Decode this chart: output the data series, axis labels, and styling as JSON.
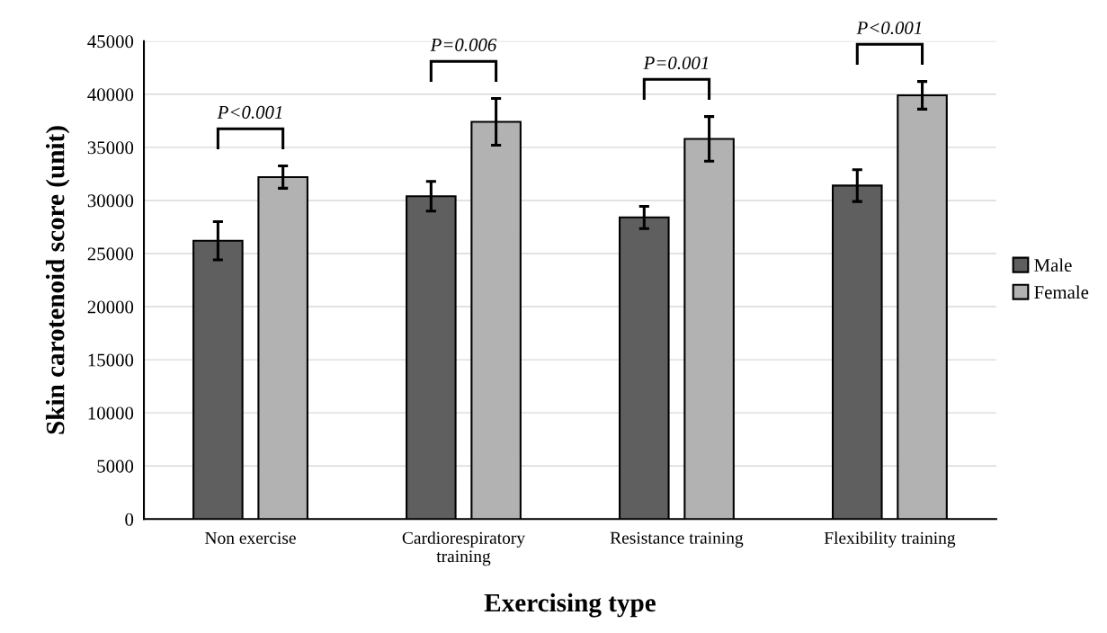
{
  "chart_data": {
    "type": "bar",
    "xlabel": "Exercising type",
    "ylabel": "Skin carotenoid score (unit)",
    "categories": [
      "Non exercise",
      "Cardiorespiratory\ntraining",
      "Resistance training",
      "Flexibility training"
    ],
    "series": [
      {
        "name": "Male",
        "color": "#5f5f5f",
        "values": [
          26200,
          30400,
          28400,
          31400
        ],
        "errors": [
          1800,
          1400,
          1050,
          1500
        ]
      },
      {
        "name": "Female",
        "color": "#b2b2b2",
        "values": [
          32200,
          37400,
          35800,
          39900
        ],
        "errors": [
          1050,
          2200,
          2100,
          1300
        ]
      }
    ],
    "ylim": [
      0,
      45000
    ],
    "yticks": [
      0,
      5000,
      10000,
      15000,
      20000,
      25000,
      30000,
      35000,
      40000,
      45000
    ],
    "grid": "y",
    "legend": "right",
    "annotations": [
      "P<0.001",
      "P=0.006",
      "P=0.001",
      "P<0.001"
    ]
  }
}
